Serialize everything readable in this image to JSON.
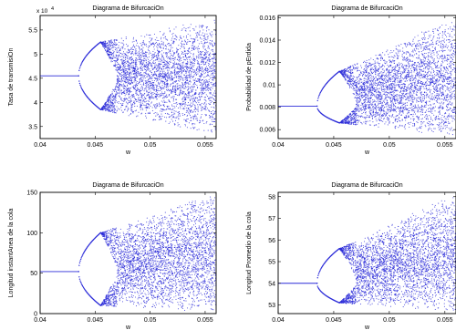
{
  "chart_data": [
    {
      "type": "scatter",
      "title": "Diagrama de BifurcaciOn",
      "xlabel": "w",
      "ylabel": "Tasa de transmisiOn",
      "xlim": [
        0.04,
        0.056
      ],
      "ylim": [
        32500,
        58000
      ],
      "xticks": [
        0.04,
        0.045,
        0.05,
        0.055
      ],
      "xtick_labels": [
        "0.04",
        "0.045",
        "0.05",
        "0.055"
      ],
      "yticks": [
        35000,
        40000,
        45000,
        50000,
        55000
      ],
      "ytick_labels": [
        "3.5",
        "4",
        "4.5",
        "5",
        "5.5"
      ],
      "y_multiplier": "x 10",
      "y_exponent": "4",
      "series_color": "#2b2bd8",
      "bifurcation": {
        "fixed_value": 45500,
        "first_split_w": 0.0435,
        "period2_w": 0.0455,
        "period2_upper": 52500,
        "period2_lower": 38500,
        "chaos_w": 0.047,
        "chaos_center": 45000,
        "end_upper": 57500,
        "end_lower": 33000
      }
    },
    {
      "type": "scatter",
      "title": "Diagrama de BifurcaciOn",
      "xlabel": "w",
      "ylabel": "Probabilidad de pErdida",
      "xlim": [
        0.04,
        0.056
      ],
      "ylim": [
        0.0052,
        0.0162
      ],
      "xticks": [
        0.04,
        0.045,
        0.05,
        0.055
      ],
      "xtick_labels": [
        "0.04",
        "0.045",
        "0.05",
        "0.055"
      ],
      "yticks": [
        0.006,
        0.008,
        0.01,
        0.012,
        0.014,
        0.016
      ],
      "ytick_labels": [
        "0.006",
        "0.008",
        "0.01",
        "0.012",
        "0.014",
        "0.016"
      ],
      "series_color": "#2b2bd8",
      "bifurcation": {
        "fixed_value": 0.0081,
        "first_split_w": 0.0435,
        "period2_w": 0.0455,
        "period2_upper": 0.0112,
        "period2_lower": 0.0066,
        "chaos_w": 0.047,
        "chaos_center": 0.0082,
        "end_upper": 0.0162,
        "end_lower": 0.0052
      }
    },
    {
      "type": "scatter",
      "title": "Diagrama de BifurcaciOn",
      "xlabel": "w",
      "ylabel": "Longitud instantAnea de la cola",
      "xlim": [
        0.04,
        0.056
      ],
      "ylim": [
        0,
        150
      ],
      "xticks": [
        0.04,
        0.045,
        0.05,
        0.055
      ],
      "xtick_labels": [
        "0.04",
        "0.045",
        "0.05",
        "0.055"
      ],
      "yticks": [
        0,
        50,
        100,
        150
      ],
      "ytick_labels": [
        "0",
        "50",
        "100",
        "150"
      ],
      "series_color": "#2b2bd8",
      "bifurcation": {
        "fixed_value": 52,
        "first_split_w": 0.0435,
        "period2_w": 0.0455,
        "period2_upper": 100,
        "period2_lower": 10,
        "chaos_w": 0.047,
        "chaos_center": 52,
        "end_upper": 150,
        "end_lower": 0
      }
    },
    {
      "type": "scatter",
      "title": "Diagrama de BifurcaciOn",
      "xlabel": "w",
      "ylabel": "Longitud Promedio de la cola",
      "xlim": [
        0.04,
        0.056
      ],
      "ylim": [
        52.6,
        58.2
      ],
      "xticks": [
        0.04,
        0.045,
        0.05,
        0.055
      ],
      "xtick_labels": [
        "0.04",
        "0.045",
        "0.05",
        "0.055"
      ],
      "yticks": [
        53,
        54,
        55,
        56,
        57,
        58
      ],
      "ytick_labels": [
        "53",
        "54",
        "55",
        "56",
        "57",
        "58"
      ],
      "series_color": "#2b2bd8",
      "bifurcation": {
        "fixed_value": 54,
        "first_split_w": 0.0435,
        "period2_w": 0.0455,
        "period2_upper": 55.6,
        "period2_lower": 53.1,
        "chaos_w": 0.047,
        "chaos_center": 54,
        "end_upper": 58.2,
        "end_lower": 52.6
      }
    }
  ]
}
